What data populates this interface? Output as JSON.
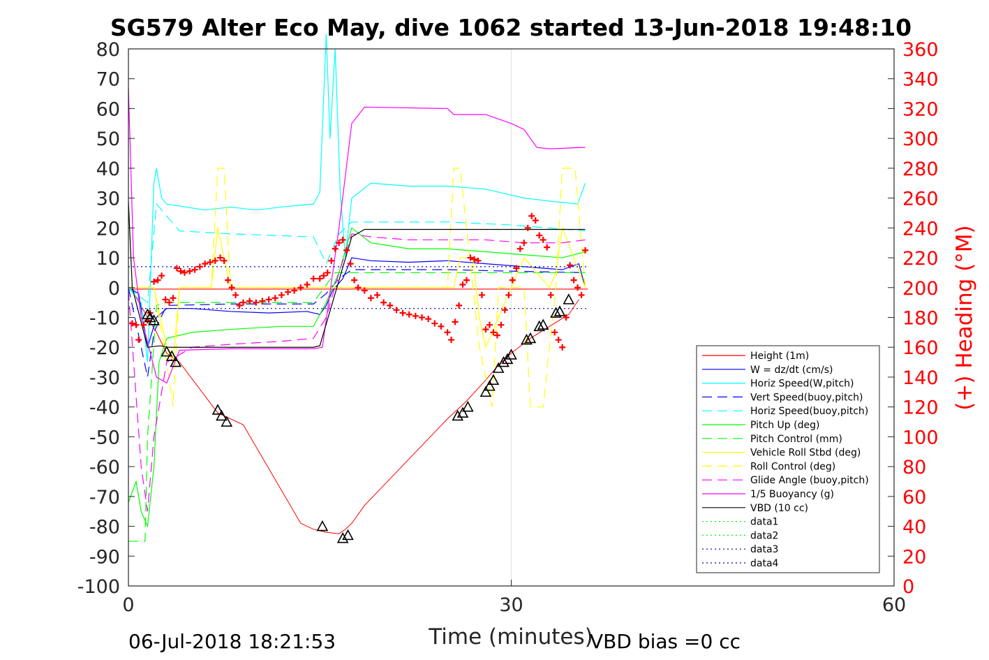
{
  "chart_data": {
    "type": "line",
    "title": "SG579 Alter Eco May, dive 1062 started 13-Jun-2018 19:48:10",
    "xlabel": "Time (minutes)",
    "ylabel": "",
    "y2label": "(+) Heading (°M)",
    "xlim": [
      0,
      60
    ],
    "ylim": [
      -100,
      80
    ],
    "y2lim": [
      0,
      360
    ],
    "xticks": [
      0,
      30,
      60
    ],
    "yticks": [
      80,
      70,
      60,
      50,
      40,
      30,
      20,
      10,
      0,
      -10,
      -20,
      -30,
      -40,
      -50,
      -60,
      -70,
      -80,
      -90,
      -100
    ],
    "y2ticks": [
      360,
      340,
      320,
      300,
      280,
      260,
      240,
      220,
      200,
      180,
      160,
      140,
      120,
      100,
      80,
      60,
      40,
      20,
      0
    ],
    "grid": "x-only",
    "legend_position": "lower-right",
    "footer_left": "06-Jul-2018 18:21:53",
    "footer_right": "VBD bias =0 cc",
    "series": [
      {
        "name": "Height (1m)",
        "color": "#ff0000",
        "style": "solid",
        "x": [
          0,
          36
        ],
        "y": [
          -0.5,
          -0.5
        ]
      },
      {
        "name": "W = dz/dt (cm/s)",
        "color": "#0000ff",
        "style": "solid",
        "x": [
          0,
          0.8,
          1.5,
          2.2,
          3,
          5,
          8,
          11,
          14,
          15,
          15.5,
          16,
          16.8,
          17.5,
          19,
          22,
          25,
          28,
          31,
          34,
          35.3,
          35.8
        ],
        "y": [
          0,
          -2,
          -20,
          -10,
          -7,
          -7,
          -8,
          -8.5,
          -8,
          -9,
          -6,
          -1,
          3,
          10,
          9,
          8.5,
          9,
          8,
          7,
          6,
          8,
          0
        ]
      },
      {
        "name": "Horiz Speed(W,pitch)",
        "color": "#00ffff",
        "style": "solid",
        "x": [
          0,
          1,
          1.5,
          2,
          2.2,
          2.6,
          3,
          6,
          8,
          10,
          12,
          14.5,
          15,
          15.5,
          15.8,
          16.2,
          16.6,
          17,
          17.5,
          19,
          22,
          25,
          28,
          31,
          33,
          35.2,
          35.8
        ],
        "y": [
          0,
          -5,
          -25,
          35,
          40,
          30,
          28,
          26,
          27,
          26,
          27,
          28,
          32,
          85,
          50,
          80,
          32,
          10,
          30,
          35,
          34,
          34,
          33,
          30,
          29,
          28,
          35
        ]
      },
      {
        "name": "Vert Speed(buoy,pitch)",
        "color": "#0000ff",
        "style": "dash",
        "x": [
          0,
          1.5,
          2,
          3,
          8,
          14.5,
          15.5,
          16.5,
          17.5,
          25,
          30,
          35.8
        ],
        "y": [
          0,
          -30,
          -15,
          -6,
          -5.5,
          -5.5,
          -2,
          3,
          6,
          6,
          5.5,
          5
        ]
      },
      {
        "name": "Horiz Speed(buoy,pitch)",
        "color": "#00ffff",
        "style": "dash",
        "x": [
          0,
          1.5,
          2.2,
          3,
          4,
          8,
          14.5,
          15.5,
          16.5,
          17.5,
          19,
          25,
          30,
          35.8
        ],
        "y": [
          0,
          -5,
          28,
          24,
          19,
          18,
          17,
          8,
          18,
          22,
          22,
          22,
          21,
          19
        ]
      },
      {
        "name": "Pitch Up (deg)",
        "color": "#00ff00",
        "style": "solid",
        "x": [
          0,
          0.6,
          1,
          1.5,
          2,
          2.4,
          3,
          5,
          8,
          12,
          14.5,
          15.5,
          16.5,
          17.5,
          19,
          22,
          25,
          28,
          31,
          34,
          35.8
        ],
        "y": [
          -72,
          -65,
          -75,
          -80,
          -60,
          -25,
          -17,
          -15,
          -14,
          -13,
          -13,
          -5,
          5,
          20,
          15,
          13,
          13,
          12,
          11,
          10,
          12
        ]
      },
      {
        "name": "Pitch Control (mm)",
        "color": "#00ff00",
        "style": "dash",
        "x": [
          0,
          1.3,
          1.5,
          2.2,
          3,
          14.5,
          15,
          16.2,
          17,
          35.8
        ],
        "y": [
          -85,
          -85,
          -50,
          -6,
          -5,
          -5,
          -2,
          5,
          5,
          5
        ]
      },
      {
        "name": "Vehicle Roll Stbd (deg)",
        "color": "#ffff00",
        "style": "solid",
        "x": [
          0,
          2,
          3,
          3.5,
          4,
          6.5,
          7,
          7.5,
          8,
          14.5,
          15.5,
          25.5,
          26,
          27,
          27.5,
          28,
          30,
          31,
          33,
          33.5,
          34,
          35.8
        ],
        "y": [
          0,
          0,
          -20,
          -25,
          0,
          0,
          20,
          10,
          0,
          0,
          0,
          0,
          10,
          10,
          -10,
          -20,
          0,
          10,
          0,
          5,
          20,
          0
        ]
      },
      {
        "name": "Roll Control (deg)",
        "color": "#ffff00",
        "style": "dash",
        "x": [
          0,
          2,
          3,
          3.5,
          4,
          6.5,
          7,
          7.5,
          8,
          14.5,
          25,
          25.5,
          26,
          27,
          27.5,
          28.5,
          29,
          31,
          31.5,
          32.5,
          33.5,
          34,
          35,
          35.8
        ],
        "y": [
          0,
          0,
          -25,
          -40,
          0,
          0,
          40,
          40,
          0,
          0,
          0,
          40,
          40,
          0,
          -20,
          -40,
          0,
          0,
          -40,
          -40,
          0,
          40,
          40,
          0
        ]
      },
      {
        "name": "Glide Angle (buoy,pitch)",
        "color": "#ff00ff",
        "style": "dash",
        "x": [
          0,
          1,
          1.5,
          2,
          3,
          5,
          8,
          12,
          14.5,
          15.5,
          16.5,
          17.5,
          19,
          22,
          25,
          28,
          31,
          34,
          35.8
        ],
        "y": [
          -1,
          -60,
          -75,
          -50,
          -25,
          -20,
          -19,
          -18,
          -17,
          -10,
          5,
          18,
          17,
          16,
          16,
          16,
          15,
          15,
          16
        ]
      },
      {
        "name": "1/5 Buoyancy (g)",
        "color": "#ff00ff",
        "style": "solid",
        "x": [
          0,
          0.4,
          1,
          1.6,
          2.2,
          3,
          4,
          8,
          14.5,
          15.2,
          16.5,
          17.5,
          18.5,
          25,
          25.5,
          28,
          30,
          31,
          32,
          33,
          35.8
        ],
        "y": [
          67,
          10,
          -10,
          -20,
          -30,
          -32,
          -21,
          -20.5,
          -20.5,
          -20,
          20,
          55,
          60.5,
          60,
          58,
          58,
          55,
          53,
          47,
          46.5,
          47
        ]
      },
      {
        "name": "VBD (10 cc)",
        "color": "#000000",
        "style": "solid",
        "x": [
          0,
          0.3,
          1.5,
          2.5,
          3,
          5,
          14.5,
          15,
          17.5,
          18.5,
          35.8
        ],
        "y": [
          29,
          0,
          -20,
          -19.5,
          -20,
          -20,
          -20,
          -19.5,
          17,
          19.5,
          19.5
        ]
      },
      {
        "name": "data1",
        "color": "#00ff00",
        "style": "dot",
        "x": [],
        "y": []
      },
      {
        "name": "data2",
        "color": "#00ff00",
        "style": "dot",
        "x": [],
        "y": []
      },
      {
        "name": "data3",
        "color": "#0000aa",
        "style": "dot",
        "x": [
          0,
          36
        ],
        "y": [
          7,
          7
        ]
      },
      {
        "name": "data4",
        "color": "#0000aa",
        "style": "dot",
        "x": [
          0,
          36
        ],
        "y": [
          -7,
          -7
        ]
      }
    ],
    "depth_track": {
      "color": "#ff0000",
      "x": [
        0.3,
        1.5,
        2.2,
        3,
        4,
        7,
        9,
        13.5,
        14.5,
        15.5,
        16.5,
        17,
        17.5,
        18.5,
        25,
        26.5,
        28,
        29,
        30,
        31.5,
        33,
        34.5,
        35.3
      ],
      "y": [
        -1,
        -10,
        -15,
        -22,
        -25,
        -42,
        -46,
        -79,
        -81,
        -82,
        -82.5,
        -81,
        -79,
        -73,
        -44,
        -38,
        -31,
        -26,
        -22,
        -17,
        -13,
        -9,
        -4
      ]
    },
    "markers_triangle": {
      "color": "#000000",
      "x": [
        1.5,
        1.7,
        2.0,
        3.0,
        3.4,
        3.7,
        7.0,
        7.3,
        7.7,
        15.2,
        16.8,
        17.2,
        25.8,
        26.2,
        26.6,
        28.0,
        28.3,
        28.6,
        29.0,
        29.4,
        29.7,
        30.0,
        31.2,
        31.5,
        32.2,
        32.5,
        33.5,
        33.8,
        34.5
      ],
      "y": [
        -9,
        -10,
        -11,
        -21.5,
        -23,
        -25,
        -41,
        -43,
        -45,
        -80,
        -84,
        -83,
        -43,
        -42,
        -40,
        -35,
        -33,
        -31,
        -27,
        -25,
        -24,
        -22.5,
        -17.5,
        -17,
        -13,
        -12.5,
        -8.5,
        -8,
        -4
      ]
    },
    "heading_points": {
      "color": "#ff0000",
      "x": [
        0.3,
        0.6,
        0.8,
        1.2,
        1.5,
        1.7,
        2.0,
        2.3,
        2.6,
        2.9,
        3.2,
        3.5,
        3.8,
        4.1,
        4.4,
        4.8,
        5.2,
        5.6,
        6.0,
        6.4,
        6.8,
        7.2,
        7.5,
        7.8,
        8.1,
        8.4,
        8.7,
        9.0,
        9.5,
        10,
        10.5,
        11,
        11.5,
        12,
        12.5,
        13,
        13.5,
        14,
        14.5,
        15,
        15.3,
        15.6,
        15.9,
        16.2,
        16.5,
        16.8,
        17.1,
        17.4,
        17.7,
        18,
        18.5,
        19,
        19.5,
        20,
        20.5,
        21,
        21.5,
        22,
        22.5,
        23,
        23.5,
        24,
        24.5,
        25,
        25.3,
        25.6,
        25.9,
        26.2,
        26.5,
        26.8,
        27.1,
        27.4,
        27.7,
        28,
        28.3,
        28.6,
        28.9,
        29.2,
        29.5,
        29.8,
        30.1,
        30.4,
        30.7,
        31,
        31.3,
        31.6,
        31.9,
        32.2,
        32.5,
        32.8,
        33.1,
        33.4,
        33.7,
        34,
        34.3,
        34.6,
        34.9,
        35.2,
        35.5,
        35.8
      ],
      "y": [
        176,
        175,
        165,
        175,
        178,
        183,
        204,
        205,
        208,
        192,
        190,
        193,
        213,
        211,
        210,
        211,
        212,
        214,
        216,
        217,
        218,
        220,
        218,
        205,
        200,
        195,
        188,
        190,
        191,
        190,
        191,
        192,
        193,
        195,
        197,
        198,
        200,
        202,
        206,
        206,
        208,
        210,
        218,
        226,
        230,
        232,
        225,
        216,
        205,
        200,
        198,
        193,
        195,
        190,
        188,
        185,
        183,
        182,
        181,
        180,
        179,
        176,
        174,
        170,
        165,
        177,
        188,
        202,
        205,
        220,
        219,
        218,
        195,
        172,
        175,
        170,
        168,
        175,
        185,
        195,
        205,
        213,
        226,
        230,
        240,
        248,
        245,
        235,
        232,
        227,
        195,
        170,
        165,
        160,
        180,
        215,
        205,
        200,
        195,
        225
      ]
    }
  }
}
